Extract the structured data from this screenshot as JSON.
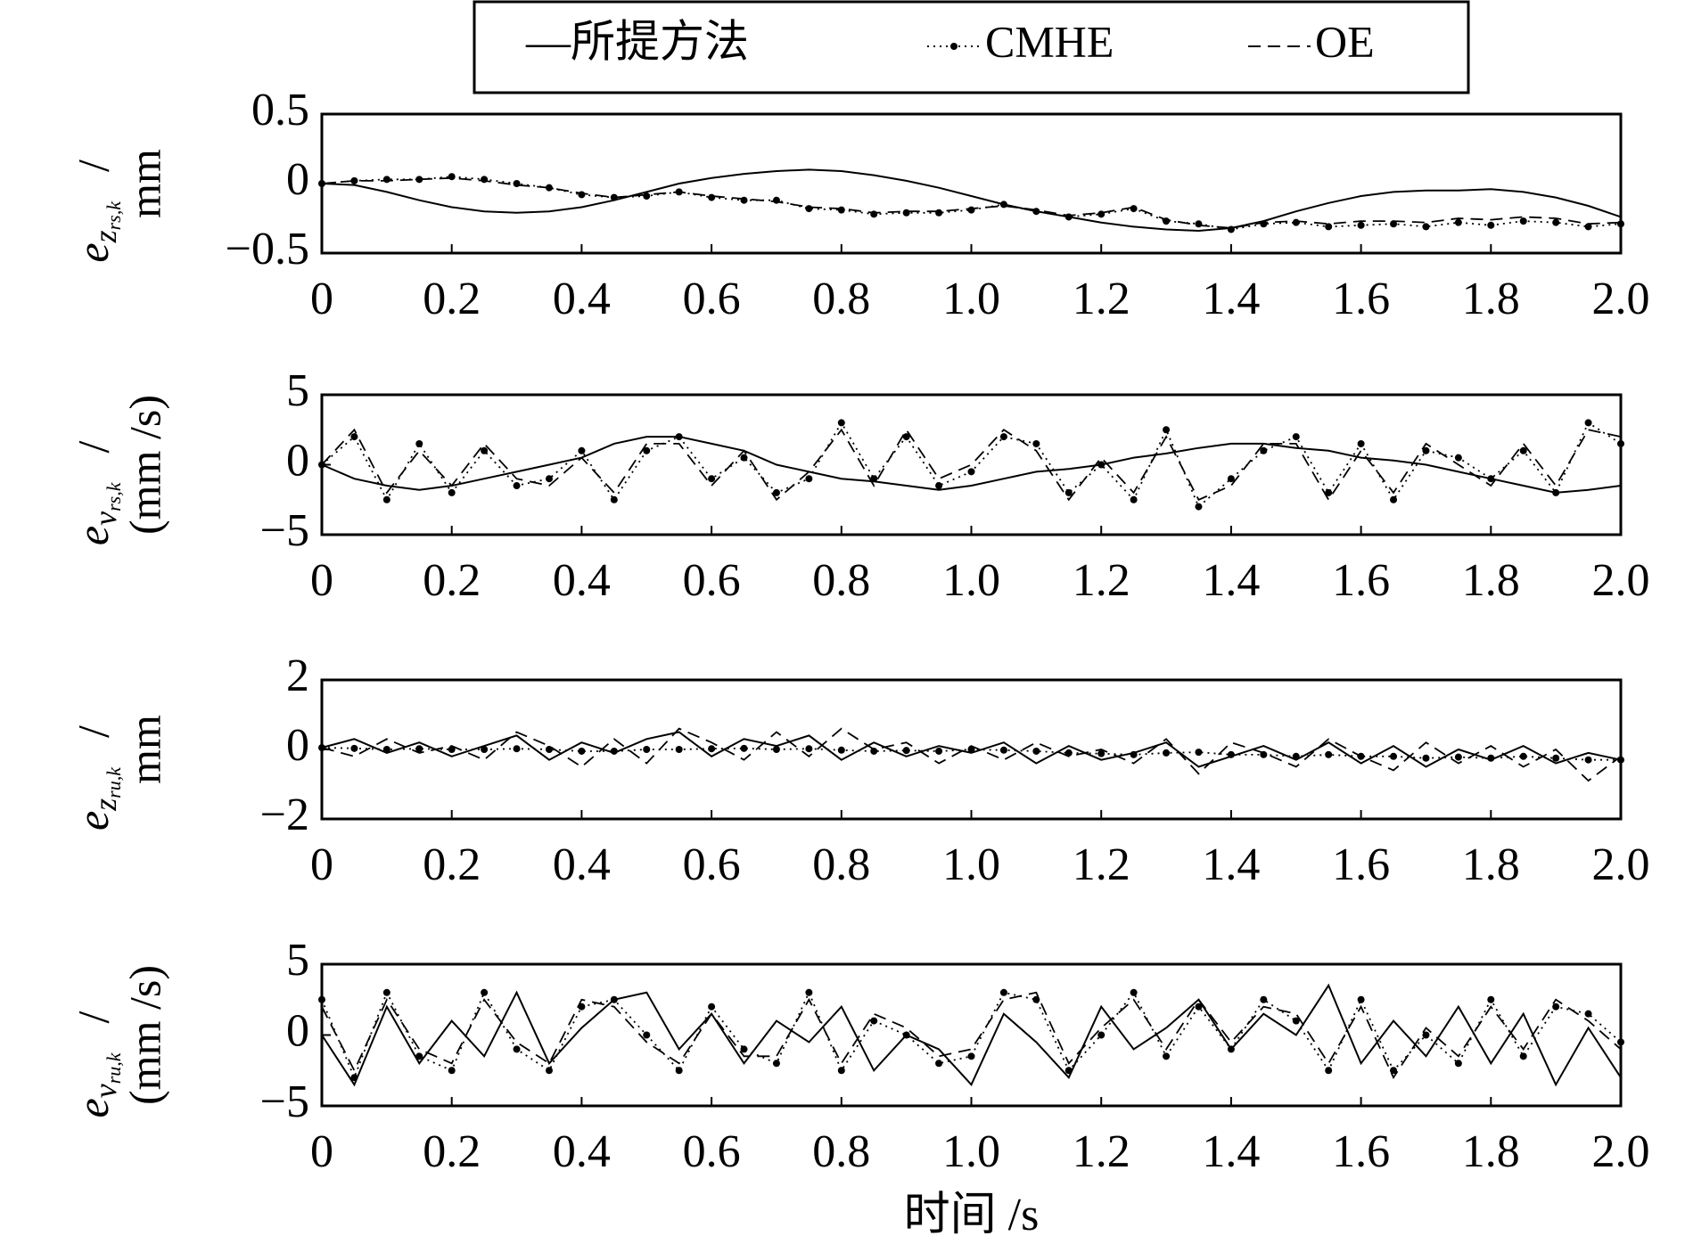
{
  "chart_data": [
    {
      "type": "line",
      "ylabel_var": "e",
      "ylabel_sub": "z",
      "ylabel_subsub": "rs,k",
      "ylabel_unit": "mm",
      "x": [
        0,
        0.05,
        0.1,
        0.15,
        0.2,
        0.25,
        0.3,
        0.35,
        0.4,
        0.45,
        0.5,
        0.55,
        0.6,
        0.65,
        0.7,
        0.75,
        0.8,
        0.85,
        0.9,
        0.95,
        1,
        1.05,
        1.1,
        1.15,
        1.2,
        1.25,
        1.3,
        1.35,
        1.4,
        1.45,
        1.5,
        1.55,
        1.6,
        1.65,
        1.7,
        1.75,
        1.8,
        1.85,
        1.9,
        1.95,
        2
      ],
      "xlim": [
        0,
        2
      ],
      "xticks": [
        0,
        0.2,
        0.4,
        0.6,
        0.8,
        {
          "value": 1,
          "label": "1.0"
        },
        1.2,
        1.4,
        1.6,
        1.8,
        {
          "value": 2,
          "label": "2.0"
        }
      ],
      "ylim": [
        -0.5,
        0.5
      ],
      "yticks": [
        {
          "value": -0.5,
          "label": "−0.5"
        },
        0,
        0.5
      ],
      "series": [
        {
          "name": "—所提方法",
          "color": "#000000",
          "style": "solid",
          "values": [
            0,
            -0.01,
            -0.06,
            -0.12,
            -0.17,
            -0.2,
            -0.21,
            -0.2,
            -0.17,
            -0.12,
            -0.06,
            0,
            0.04,
            0.07,
            0.09,
            0.1,
            0.09,
            0.06,
            0.02,
            -0.03,
            -0.09,
            -0.15,
            -0.2,
            -0.24,
            -0.28,
            -0.31,
            -0.33,
            -0.34,
            -0.32,
            -0.27,
            -0.2,
            -0.14,
            -0.09,
            -0.06,
            -0.05,
            -0.05,
            -0.04,
            -0.06,
            -0.1,
            -0.16,
            -0.24
          ]
        },
        {
          "name": "CMHE",
          "color": "#000000",
          "style": "dotted",
          "values": [
            0,
            0.02,
            0.03,
            0.03,
            0.05,
            0.03,
            0,
            -0.03,
            -0.08,
            -0.1,
            -0.09,
            -0.06,
            -0.1,
            -0.12,
            -0.12,
            -0.18,
            -0.19,
            -0.22,
            -0.21,
            -0.21,
            -0.19,
            -0.15,
            -0.2,
            -0.24,
            -0.22,
            -0.18,
            -0.27,
            -0.29,
            -0.33,
            -0.29,
            -0.28,
            -0.31,
            -0.3,
            -0.29,
            -0.31,
            -0.28,
            -0.3,
            -0.27,
            -0.28,
            -0.31,
            -0.29
          ]
        },
        {
          "name": "OE",
          "color": "#000000",
          "style": "dashed",
          "values": [
            0,
            0.02,
            0.02,
            0.03,
            0.04,
            0.02,
            -0.01,
            -0.03,
            -0.07,
            -0.1,
            -0.08,
            -0.06,
            -0.09,
            -0.11,
            -0.13,
            -0.17,
            -0.18,
            -0.21,
            -0.2,
            -0.2,
            -0.18,
            -0.16,
            -0.19,
            -0.23,
            -0.21,
            -0.17,
            -0.26,
            -0.3,
            -0.32,
            -0.28,
            -0.27,
            -0.29,
            -0.27,
            -0.27,
            -0.28,
            -0.25,
            -0.26,
            -0.24,
            -0.25,
            -0.29,
            -0.28
          ]
        }
      ]
    },
    {
      "type": "line",
      "ylabel_var": "e",
      "ylabel_sub": "v",
      "ylabel_subsub": "rs,k",
      "ylabel_unit": "(mm /s)",
      "x": [
        0,
        0.05,
        0.1,
        0.15,
        0.2,
        0.25,
        0.3,
        0.35,
        0.4,
        0.45,
        0.5,
        0.55,
        0.6,
        0.65,
        0.7,
        0.75,
        0.8,
        0.85,
        0.9,
        0.95,
        1,
        1.05,
        1.1,
        1.15,
        1.2,
        1.25,
        1.3,
        1.35,
        1.4,
        1.45,
        1.5,
        1.55,
        1.6,
        1.65,
        1.7,
        1.75,
        1.8,
        1.85,
        1.9,
        1.95,
        2
      ],
      "xlim": [
        0,
        2
      ],
      "xticks": [
        0,
        0.2,
        0.4,
        0.6,
        0.8,
        {
          "value": 1,
          "label": "1.0"
        },
        1.2,
        1.4,
        1.6,
        1.8,
        {
          "value": 2,
          "label": "2.0"
        }
      ],
      "ylim": [
        -5,
        5
      ],
      "yticks": [
        {
          "value": -5,
          "label": "−5"
        },
        0,
        5
      ],
      "series": [
        {
          "color": "#000000",
          "style": "solid",
          "values": [
            0,
            -1,
            -1.5,
            -1.8,
            -1.5,
            -1,
            -0.5,
            0,
            0.5,
            1.5,
            2,
            2,
            1.5,
            1,
            0,
            -0.5,
            -1,
            -1.2,
            -1.5,
            -1.8,
            -1.5,
            -1,
            -0.5,
            -0.3,
            0,
            0.5,
            0.8,
            1.2,
            1.5,
            1.5,
            1.2,
            1,
            0.5,
            0.3,
            0,
            -0.5,
            -1,
            -1.5,
            -2,
            -1.8,
            -1.5
          ]
        },
        {
          "color": "#000000",
          "style": "dotted",
          "values": [
            0,
            2,
            -2.5,
            1.5,
            -2,
            1,
            -1.5,
            -1,
            1,
            -2.5,
            1,
            2,
            -1,
            0.5,
            -2,
            -1,
            3,
            -1,
            2,
            -1.5,
            -0.5,
            2,
            1.5,
            -2,
            0,
            -2.5,
            2.5,
            -3,
            -1,
            1,
            2,
            -2,
            1.5,
            -2.5,
            1,
            0.5,
            -1,
            1,
            -2,
            3,
            1.5
          ]
        },
        {
          "color": "#000000",
          "style": "dashed",
          "values": [
            0,
            2.5,
            -2,
            1,
            -1.5,
            1.5,
            -1,
            -1.5,
            0.5,
            -2,
            1.5,
            1.5,
            -1.5,
            1,
            -2.5,
            -0.5,
            2.5,
            -1.5,
            2.5,
            -1,
            0,
            2.5,
            1,
            -2.5,
            0.5,
            -2,
            2,
            -2.5,
            -1.5,
            1.5,
            1.5,
            -2.5,
            1,
            -2,
            1.5,
            0,
            -1.5,
            1.5,
            -1.5,
            2.5,
            2
          ]
        }
      ]
    },
    {
      "type": "line",
      "ylabel_var": "e",
      "ylabel_sub": "z",
      "ylabel_subsub": "ru,k",
      "ylabel_unit": "mm",
      "x": [
        0,
        0.05,
        0.1,
        0.15,
        0.2,
        0.25,
        0.3,
        0.35,
        0.4,
        0.45,
        0.5,
        0.55,
        0.6,
        0.65,
        0.7,
        0.75,
        0.8,
        0.85,
        0.9,
        0.95,
        1,
        1.05,
        1.1,
        1.15,
        1.2,
        1.25,
        1.3,
        1.35,
        1.4,
        1.45,
        1.5,
        1.55,
        1.6,
        1.65,
        1.7,
        1.75,
        1.8,
        1.85,
        1.9,
        1.95,
        2
      ],
      "xlim": [
        0,
        2
      ],
      "xticks": [
        0,
        0.2,
        0.4,
        0.6,
        0.8,
        {
          "value": 1,
          "label": "1.0"
        },
        1.2,
        1.4,
        1.6,
        1.8,
        {
          "value": 2,
          "label": "2.0"
        }
      ],
      "ylim": [
        -2,
        2
      ],
      "yticks": [
        {
          "value": -2,
          "label": "−2"
        },
        0,
        2
      ],
      "series": [
        {
          "color": "#000000",
          "style": "solid",
          "values": [
            0.05,
            0.3,
            -0.1,
            0.2,
            -0.2,
            0.1,
            0.4,
            -0.3,
            0.2,
            -0.1,
            0.3,
            0.5,
            -0.2,
            0.3,
            0.1,
            0.4,
            -0.3,
            0.2,
            -0.2,
            0.1,
            -0.1,
            0.2,
            -0.4,
            0.1,
            -0.3,
            -0.1,
            0.2,
            -0.5,
            -0.2,
            0.1,
            -0.3,
            0.2,
            -0.4,
            0.1,
            -0.5,
            0,
            -0.3,
            0.1,
            -0.4,
            -0.1,
            -0.3
          ]
        },
        {
          "color": "#000000",
          "style": "dotted",
          "values": [
            0.05,
            0.03,
            0,
            0.02,
            0,
            0,
            0.02,
            0,
            -0.05,
            -0.05,
            0,
            0,
            0.02,
            0.03,
            0,
            0.02,
            -0.02,
            -0.05,
            -0.03,
            -0.05,
            0,
            -0.02,
            -0.05,
            -0.1,
            -0.12,
            -0.15,
            -0.1,
            -0.08,
            -0.15,
            -0.15,
            -0.2,
            -0.15,
            -0.2,
            -0.2,
            -0.25,
            -0.22,
            -0.25,
            -0.2,
            -0.25,
            -0.3,
            -0.3
          ]
        },
        {
          "color": "#000000",
          "style": "dashed",
          "values": [
            0.05,
            -0.2,
            0.3,
            -0.1,
            0.1,
            -0.3,
            0.5,
            0.1,
            -0.5,
            0.3,
            -0.4,
            0.6,
            0.2,
            -0.3,
            0.5,
            -0.2,
            0.6,
            0,
            0.2,
            -0.4,
            0.1,
            -0.3,
            0.2,
            -0.2,
            0,
            -0.4,
            0.3,
            -0.7,
            0.2,
            -0.1,
            -0.5,
            0.3,
            -0.2,
            -0.6,
            0.2,
            -0.4,
            0.1,
            -0.5,
            0,
            -0.9,
            -0.2
          ]
        }
      ]
    },
    {
      "type": "line",
      "ylabel_var": "e",
      "ylabel_sub": "v",
      "ylabel_subsub": "ru,k",
      "ylabel_unit": "(mm /s)",
      "xlabel": "时间 /s",
      "x": [
        0,
        0.05,
        0.1,
        0.15,
        0.2,
        0.25,
        0.3,
        0.35,
        0.4,
        0.45,
        0.5,
        0.55,
        0.6,
        0.65,
        0.7,
        0.75,
        0.8,
        0.85,
        0.9,
        0.95,
        1,
        1.05,
        1.1,
        1.15,
        1.2,
        1.25,
        1.3,
        1.35,
        1.4,
        1.45,
        1.5,
        1.55,
        1.6,
        1.65,
        1.7,
        1.75,
        1.8,
        1.85,
        1.9,
        1.95,
        2
      ],
      "xlim": [
        0,
        2
      ],
      "xticks": [
        0,
        0.2,
        0.4,
        0.6,
        0.8,
        {
          "value": 1,
          "label": "1.0"
        },
        1.2,
        1.4,
        1.6,
        1.8,
        {
          "value": 2,
          "label": "2.0"
        }
      ],
      "ylim": [
        -5,
        5
      ],
      "yticks": [
        {
          "value": -5,
          "label": "−5"
        },
        0,
        5
      ],
      "series": [
        {
          "color": "#000000",
          "style": "solid",
          "values": [
            0,
            -3.5,
            2,
            -2,
            1,
            -1.5,
            3,
            -2,
            0.5,
            2.5,
            3,
            -1,
            1.5,
            -2,
            1,
            -0.5,
            2,
            -2.5,
            0,
            -1,
            -3.5,
            1.5,
            -0.5,
            -3,
            2,
            -1,
            0.5,
            2.5,
            -1,
            1.5,
            0,
            3.5,
            -2,
            1,
            -1.5,
            2,
            -2,
            1.5,
            -3.5,
            0.5,
            -3
          ]
        },
        {
          "color": "#000000",
          "style": "dotted",
          "values": [
            2.5,
            -3,
            3,
            -1.5,
            -2.5,
            3,
            -1,
            -2.5,
            2,
            2.5,
            0,
            -2.5,
            2,
            -1,
            -2,
            3,
            -2.5,
            1,
            0,
            -2,
            -1.5,
            3,
            2.5,
            -2.5,
            0,
            3,
            -1.5,
            2,
            -1,
            2.5,
            1,
            -2.5,
            2.5,
            -2.5,
            0,
            -2,
            2.5,
            -1.5,
            2,
            1.5,
            -0.5
          ]
        },
        {
          "color": "#000000",
          "style": "dashed",
          "values": [
            2,
            -2.5,
            2.5,
            -1,
            -2,
            2.5,
            -0.5,
            -2,
            2.5,
            2,
            -0.5,
            -2,
            1.5,
            -1.5,
            -1.5,
            2.5,
            -2,
            1.5,
            0.5,
            -1.5,
            -1,
            2.5,
            3,
            -2,
            0.5,
            2.5,
            -1,
            2.5,
            -0.5,
            2,
            1.5,
            -2,
            2,
            -3,
            0.5,
            -1.5,
            2,
            -1,
            2.5,
            1,
            -1
          ]
        }
      ]
    }
  ]
}
